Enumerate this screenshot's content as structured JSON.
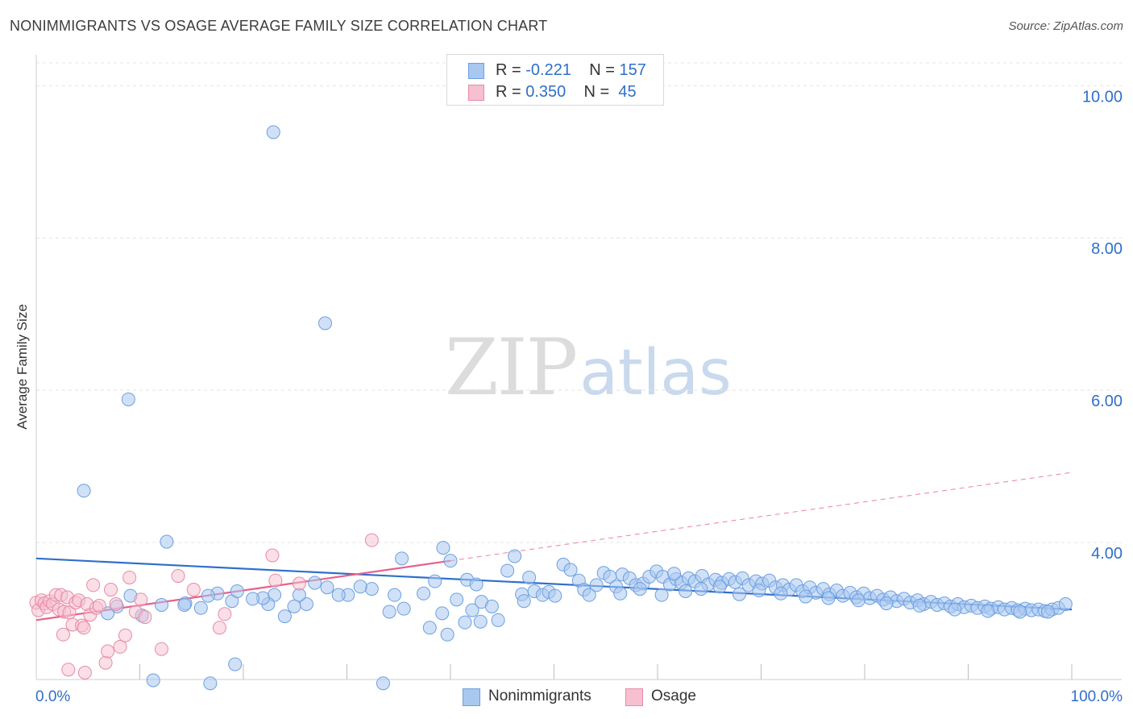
{
  "title": "NONIMMIGRANTS VS OSAGE AVERAGE FAMILY SIZE CORRELATION CHART",
  "source": "Source: ZipAtlas.com",
  "watermark": {
    "zip": "ZIP",
    "atlas": "atlas"
  },
  "legend_top": {
    "rows": [
      {
        "r_label": "R =",
        "r_value": "-0.221",
        "n_label": "N =",
        "n_value": "157"
      },
      {
        "r_label": "R =",
        "r_value": "0.350",
        "n_label": "N =",
        "n_value": "45"
      }
    ]
  },
  "legend_bottom": [
    "Nonimmigrants",
    "Osage"
  ],
  "colors": {
    "blue_fill": "#a9c8f0",
    "blue_stroke": "#6d9fe0",
    "blue_line": "#2f6fcb",
    "pink_fill": "#f6c0d0",
    "pink_stroke": "#e88aa6",
    "pink_line": "#e8608a",
    "axis_label": "#2f6fcb",
    "grid": "#e4e4e4"
  },
  "chart_data": {
    "type": "scatter",
    "title": "NONIMMIGRANTS VS OSAGE AVERAGE FAMILY SIZE CORRELATION CHART",
    "xlabel": "",
    "ylabel": "Average Family Size",
    "xlim": [
      0,
      100
    ],
    "ylim": [
      2.2,
      10.3
    ],
    "x_tick_labels": [
      "0.0%",
      "100.0%"
    ],
    "y_ticks": [
      4,
      6,
      8,
      10
    ],
    "y_tick_labels": [
      "4.00",
      "6.00",
      "8.00",
      "10.00"
    ],
    "grid": true,
    "series": [
      {
        "name": "Nonimmigrants",
        "R": -0.221,
        "N": 157,
        "trend": {
          "x": [
            0,
            100
          ],
          "y": [
            3.79,
            3.12
          ]
        },
        "points": [
          [
            22.9,
            9.39
          ],
          [
            27.9,
            6.88
          ],
          [
            8.9,
            5.88
          ],
          [
            4.6,
            4.68
          ],
          [
            12.6,
            4.01
          ],
          [
            35.3,
            3.79
          ],
          [
            35.5,
            3.13
          ],
          [
            39.3,
            3.93
          ],
          [
            37.4,
            3.33
          ],
          [
            38.5,
            3.49
          ],
          [
            39.2,
            3.07
          ],
          [
            40.0,
            3.76
          ],
          [
            40.6,
            3.25
          ],
          [
            41.6,
            3.51
          ],
          [
            42.1,
            3.11
          ],
          [
            42.5,
            3.45
          ],
          [
            43.0,
            3.22
          ],
          [
            44.0,
            3.16
          ],
          [
            44.6,
            2.98
          ],
          [
            45.5,
            3.63
          ],
          [
            46.9,
            3.32
          ],
          [
            47.1,
            3.23
          ],
          [
            34.6,
            3.31
          ],
          [
            34.1,
            3.09
          ],
          [
            32.4,
            3.39
          ],
          [
            31.3,
            3.42
          ],
          [
            30.1,
            3.31
          ],
          [
            29.2,
            3.31
          ],
          [
            28.1,
            3.41
          ],
          [
            26.9,
            3.47
          ],
          [
            26.1,
            3.19
          ],
          [
            25.4,
            3.31
          ],
          [
            24.9,
            3.16
          ],
          [
            24.0,
            3.03
          ],
          [
            23.0,
            3.31
          ],
          [
            22.4,
            3.19
          ],
          [
            21.9,
            3.27
          ],
          [
            20.9,
            3.26
          ],
          [
            18.9,
            3.23
          ],
          [
            17.5,
            3.33
          ],
          [
            16.6,
            3.3
          ],
          [
            15.9,
            3.14
          ],
          [
            14.4,
            3.2
          ],
          [
            12.1,
            3.18
          ],
          [
            10.2,
            3.04
          ],
          [
            9.1,
            3.3
          ],
          [
            7.8,
            3.16
          ],
          [
            6.9,
            3.07
          ],
          [
            14.3,
            3.18
          ],
          [
            19.4,
            3.36
          ],
          [
            38.0,
            2.88
          ],
          [
            39.7,
            2.79
          ],
          [
            41.4,
            2.95
          ],
          [
            42.9,
            2.96
          ],
          [
            46.2,
            3.82
          ],
          [
            47.6,
            3.54
          ],
          [
            48.1,
            3.36
          ],
          [
            48.9,
            3.31
          ],
          [
            49.5,
            3.35
          ],
          [
            50.1,
            3.3
          ],
          [
            50.9,
            3.71
          ],
          [
            51.6,
            3.64
          ],
          [
            52.4,
            3.5
          ],
          [
            52.9,
            3.38
          ],
          [
            53.4,
            3.31
          ],
          [
            54.1,
            3.44
          ],
          [
            54.8,
            3.6
          ],
          [
            55.4,
            3.55
          ],
          [
            56.0,
            3.42
          ],
          [
            56.6,
            3.58
          ],
          [
            57.3,
            3.53
          ],
          [
            57.9,
            3.44
          ],
          [
            58.6,
            3.46
          ],
          [
            59.2,
            3.55
          ],
          [
            59.9,
            3.62
          ],
          [
            60.5,
            3.55
          ],
          [
            61.2,
            3.45
          ],
          [
            61.8,
            3.52
          ],
          [
            62.3,
            3.47
          ],
          [
            63.0,
            3.53
          ],
          [
            63.6,
            3.49
          ],
          [
            64.3,
            3.56
          ],
          [
            64.9,
            3.45
          ],
          [
            65.6,
            3.51
          ],
          [
            66.2,
            3.47
          ],
          [
            66.9,
            3.52
          ],
          [
            67.5,
            3.48
          ],
          [
            68.2,
            3.53
          ],
          [
            68.8,
            3.44
          ],
          [
            69.5,
            3.49
          ],
          [
            70.1,
            3.46
          ],
          [
            70.8,
            3.5
          ],
          [
            71.4,
            3.41
          ],
          [
            72.1,
            3.44
          ],
          [
            72.7,
            3.38
          ],
          [
            73.4,
            3.44
          ],
          [
            74.0,
            3.36
          ],
          [
            74.7,
            3.41
          ],
          [
            75.3,
            3.34
          ],
          [
            76.0,
            3.39
          ],
          [
            76.6,
            3.32
          ],
          [
            77.3,
            3.37
          ],
          [
            77.9,
            3.3
          ],
          [
            78.6,
            3.34
          ],
          [
            79.2,
            3.28
          ],
          [
            79.9,
            3.33
          ],
          [
            80.5,
            3.27
          ],
          [
            81.2,
            3.3
          ],
          [
            81.8,
            3.25
          ],
          [
            82.5,
            3.28
          ],
          [
            83.1,
            3.23
          ],
          [
            83.8,
            3.26
          ],
          [
            84.4,
            3.21
          ],
          [
            85.1,
            3.24
          ],
          [
            85.7,
            3.19
          ],
          [
            86.4,
            3.22
          ],
          [
            87.0,
            3.18
          ],
          [
            87.7,
            3.2
          ],
          [
            88.3,
            3.16
          ],
          [
            89.0,
            3.19
          ],
          [
            89.6,
            3.15
          ],
          [
            90.3,
            3.17
          ],
          [
            90.9,
            3.14
          ],
          [
            91.6,
            3.16
          ],
          [
            92.2,
            3.13
          ],
          [
            92.9,
            3.15
          ],
          [
            93.5,
            3.12
          ],
          [
            94.2,
            3.14
          ],
          [
            94.8,
            3.11
          ],
          [
            95.5,
            3.13
          ],
          [
            96.1,
            3.11
          ],
          [
            96.8,
            3.12
          ],
          [
            97.4,
            3.1
          ],
          [
            98.1,
            3.12
          ],
          [
            98.7,
            3.14
          ],
          [
            99.4,
            3.19
          ],
          [
            56.4,
            3.33
          ],
          [
            58.3,
            3.39
          ],
          [
            60.4,
            3.31
          ],
          [
            61.6,
            3.59
          ],
          [
            62.7,
            3.36
          ],
          [
            64.2,
            3.39
          ],
          [
            66.0,
            3.42
          ],
          [
            67.9,
            3.32
          ],
          [
            69.8,
            3.37
          ],
          [
            71.9,
            3.33
          ],
          [
            74.3,
            3.29
          ],
          [
            76.5,
            3.27
          ],
          [
            79.4,
            3.24
          ],
          [
            82.1,
            3.2
          ],
          [
            85.3,
            3.17
          ],
          [
            88.7,
            3.12
          ],
          [
            91.9,
            3.1
          ],
          [
            95.0,
            3.09
          ],
          [
            97.7,
            3.09
          ],
          [
            33.5,
            2.15
          ],
          [
            16.8,
            2.15
          ],
          [
            11.3,
            2.19
          ],
          [
            19.2,
            2.4
          ]
        ]
      },
      {
        "name": "Osage",
        "R": 0.35,
        "N": 45,
        "trend": {
          "x": [
            0,
            40
          ],
          "y": [
            2.98,
            3.76
          ],
          "dashed_to": {
            "x": 100,
            "y": 4.92
          }
        },
        "points": [
          [
            0.0,
            3.21
          ],
          [
            0.2,
            3.11
          ],
          [
            0.5,
            3.24
          ],
          [
            0.8,
            3.2
          ],
          [
            1.0,
            3.15
          ],
          [
            1.3,
            3.23
          ],
          [
            1.6,
            3.19
          ],
          [
            1.9,
            3.31
          ],
          [
            2.2,
            3.12
          ],
          [
            2.4,
            3.31
          ],
          [
            2.7,
            3.09
          ],
          [
            3.0,
            3.28
          ],
          [
            3.2,
            3.08
          ],
          [
            3.5,
            2.92
          ],
          [
            3.8,
            3.21
          ],
          [
            4.1,
            3.24
          ],
          [
            4.4,
            2.91
          ],
          [
            4.6,
            2.88
          ],
          [
            4.9,
            3.19
          ],
          [
            5.2,
            3.05
          ],
          [
            5.5,
            3.44
          ],
          [
            5.8,
            3.14
          ],
          [
            6.1,
            3.17
          ],
          [
            6.7,
            2.42
          ],
          [
            7.2,
            3.38
          ],
          [
            7.7,
            3.19
          ],
          [
            8.1,
            2.63
          ],
          [
            8.6,
            2.78
          ],
          [
            9.0,
            3.54
          ],
          [
            9.6,
            3.09
          ],
          [
            10.1,
            3.25
          ],
          [
            10.5,
            3.02
          ],
          [
            12.1,
            2.6
          ],
          [
            13.7,
            3.56
          ],
          [
            15.2,
            3.38
          ],
          [
            17.7,
            2.88
          ],
          [
            18.2,
            3.06
          ],
          [
            22.8,
            3.83
          ],
          [
            23.1,
            3.5
          ],
          [
            25.4,
            3.46
          ],
          [
            32.4,
            4.03
          ],
          [
            2.6,
            2.79
          ],
          [
            3.1,
            2.33
          ],
          [
            4.7,
            2.29
          ],
          [
            6.9,
            2.57
          ]
        ]
      }
    ]
  }
}
